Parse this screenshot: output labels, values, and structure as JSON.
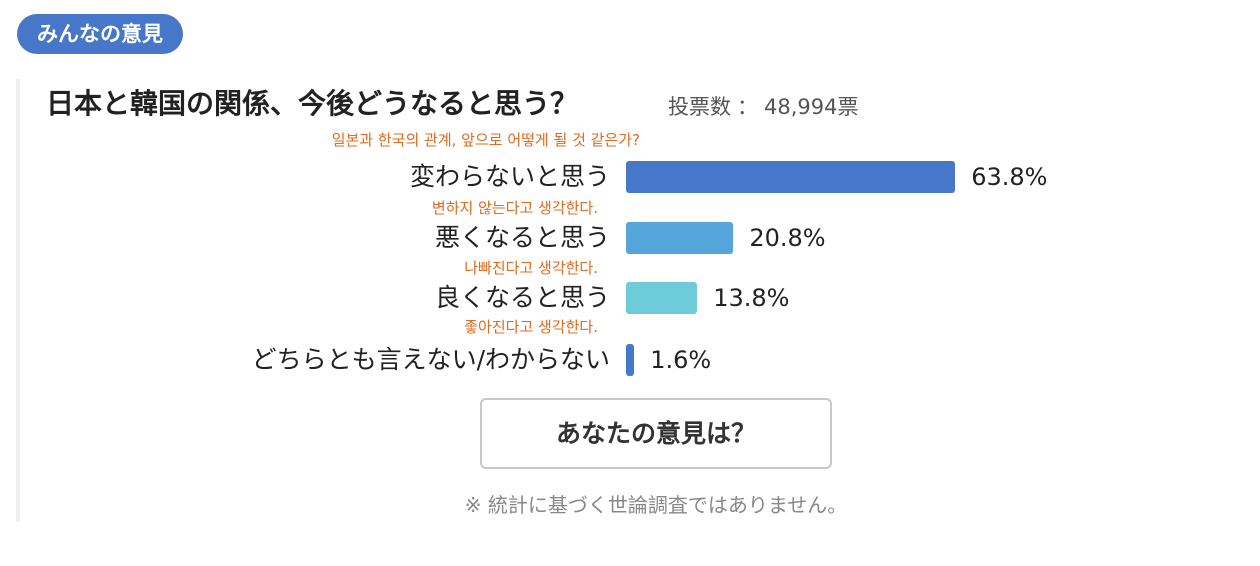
{
  "badge": "みんなの意見",
  "chart_data": {
    "type": "bar",
    "title": "日本と韓国の関係、今後どうなると思う？",
    "subtitle": "일본과 한국의 관계, 앞으로 어떻게 될 것 같은가?",
    "votes_label": "投票数",
    "votes_sep": "：",
    "votes_value": "48,994票",
    "categories": [
      "変わらないと思う",
      "悪くなると思う",
      "良くなると思う",
      "どちらとも言えない/わからない"
    ],
    "categories_ko": [
      "변하지 않는다고 생각한다.",
      "나빠진다고 생각한다.",
      "좋아진다고 생각한다.",
      ""
    ],
    "values": [
      63.8,
      20.8,
      13.8,
      1.6
    ],
    "value_labels": [
      "63.8%",
      "20.8%",
      "13.8%",
      "1.6%"
    ],
    "colors": [
      "#4677c8",
      "#56a6dc",
      "#6ecbd9",
      "#4677c8"
    ],
    "xlim": [
      0,
      100
    ],
    "grid": false
  },
  "cta_label": "あなたの意見は？",
  "note": "※ 統計に基づく世論調査ではありません。"
}
